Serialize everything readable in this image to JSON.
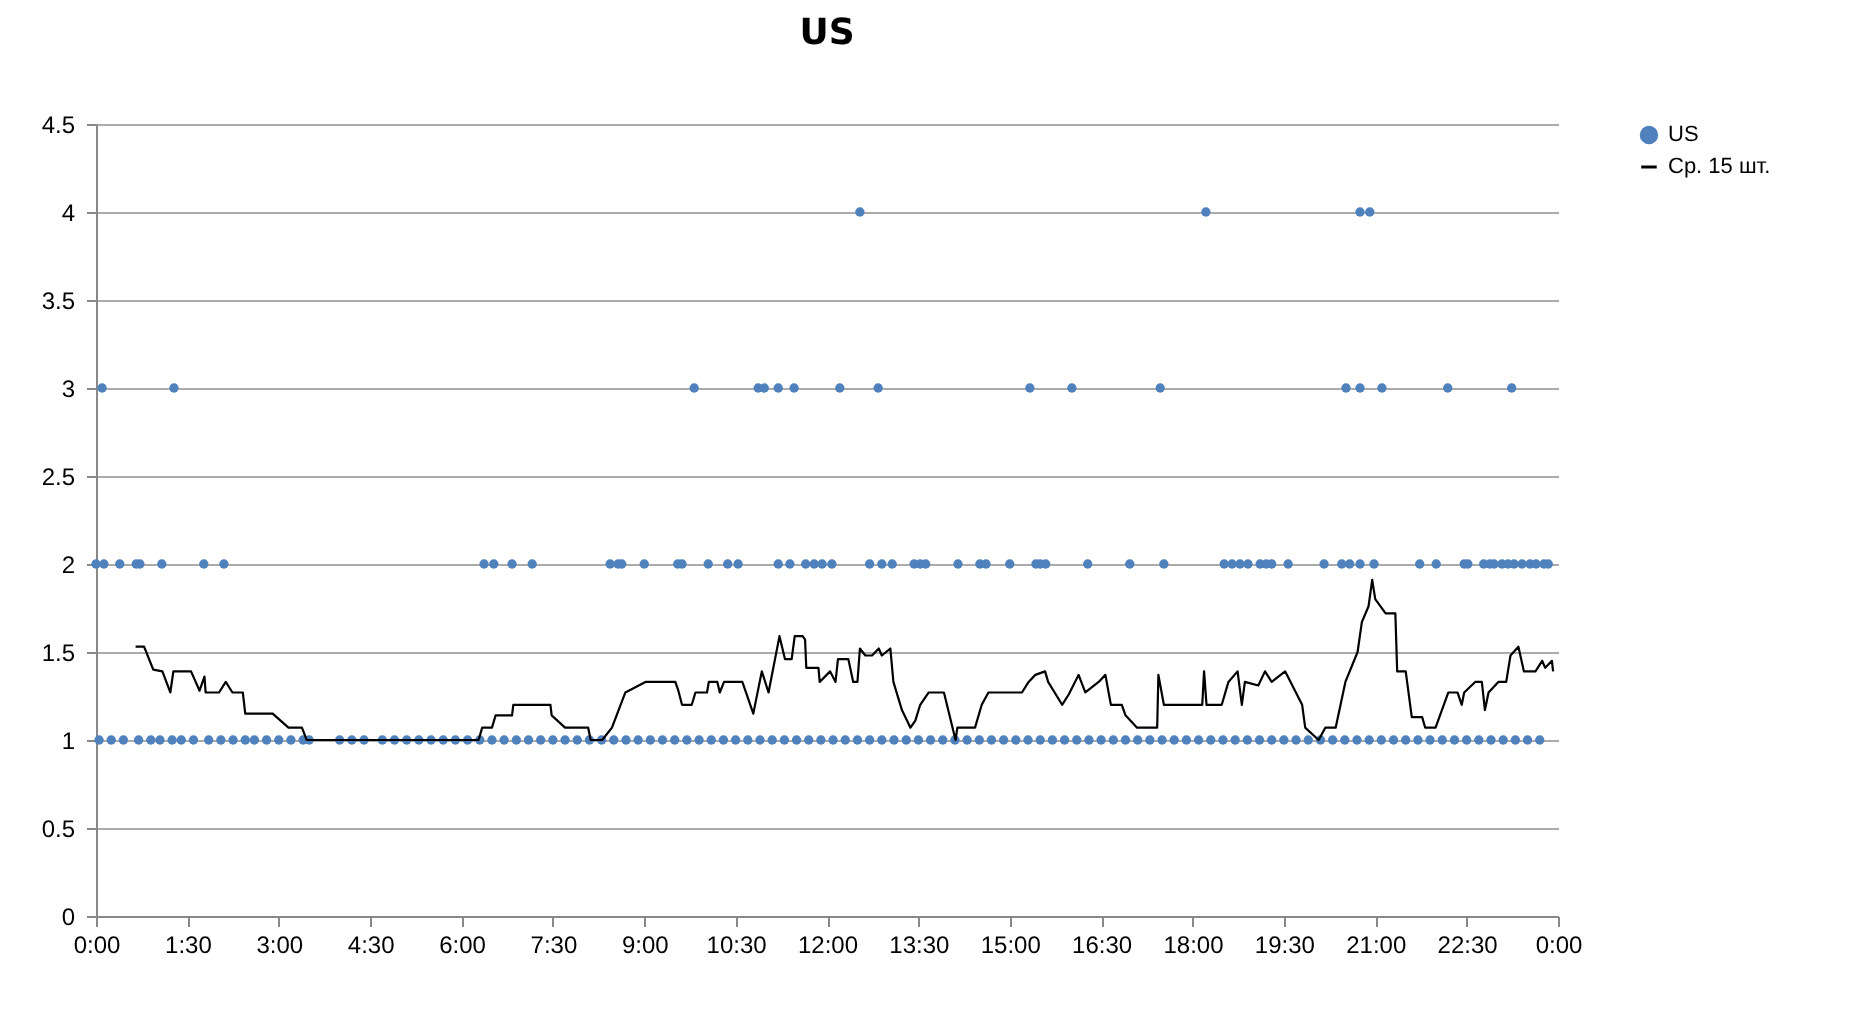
{
  "chart_data": {
    "type": "scatter",
    "title": "US",
    "grid": "y",
    "legend": "right",
    "xlim": [
      0,
      24
    ],
    "xticks": [
      {
        "value": 0,
        "label": "0:00"
      },
      {
        "value": 1.5,
        "label": "1:30"
      },
      {
        "value": 3,
        "label": "3:00"
      },
      {
        "value": 4.5,
        "label": "4:30"
      },
      {
        "value": 6,
        "label": "6:00"
      },
      {
        "value": 7.5,
        "label": "7:30"
      },
      {
        "value": 9,
        "label": "9:00"
      },
      {
        "value": 10.5,
        "label": "10:30"
      },
      {
        "value": 12,
        "label": "12:00"
      },
      {
        "value": 13.5,
        "label": "13:30"
      },
      {
        "value": 15,
        "label": "15:00"
      },
      {
        "value": 16.5,
        "label": "16:30"
      },
      {
        "value": 18,
        "label": "18:00"
      },
      {
        "value": 19.5,
        "label": "19:30"
      },
      {
        "value": 21,
        "label": "21:00"
      },
      {
        "value": 22.5,
        "label": "22:30"
      },
      {
        "value": 24,
        "label": "0:00"
      }
    ],
    "ylim": [
      0,
      4.5
    ],
    "yticks": [
      0,
      0.5,
      1,
      1.5,
      2,
      2.5,
      3,
      3.5,
      4,
      4.5
    ],
    "series": [
      {
        "name": "US",
        "type": "scatter",
        "color": "#4f81bd",
        "marker": "circle",
        "x": [
          0.1,
          1.28,
          9.82,
          10.87,
          10.97,
          11.2,
          11.46,
          12.21,
          12.84,
          15.33,
          16.02,
          17.47,
          20.52,
          20.75,
          21.11,
          22.19,
          23.24,
          12.54,
          18.22,
          20.75,
          20.91,
          0.0,
          0.13,
          0.39,
          0.66,
          0.72,
          1.08,
          1.77,
          2.1,
          6.37,
          6.53,
          6.83,
          7.16,
          8.44,
          8.57,
          8.63,
          9.0,
          9.55,
          9.62,
          10.05,
          10.37,
          10.54,
          11.2,
          11.39,
          11.65,
          11.79,
          11.92,
          12.08,
          12.7,
          12.9,
          13.07,
          13.43,
          13.53,
          13.62,
          14.15,
          14.51,
          14.61,
          15.0,
          15.43,
          15.5,
          15.59,
          16.28,
          16.97,
          17.53,
          18.52,
          18.65,
          18.78,
          18.91,
          19.11,
          19.21,
          19.3,
          19.57,
          20.16,
          20.45,
          20.58,
          20.75,
          20.98,
          21.73,
          22.0,
          22.46,
          22.52,
          22.78,
          22.88,
          22.95,
          23.08,
          23.18,
          23.28,
          23.41,
          23.54,
          23.64,
          23.77,
          23.84,
          0.05,
          0.25,
          0.45,
          0.7,
          0.9,
          1.05,
          1.25,
          1.4,
          1.6,
          1.85,
          2.05,
          2.25,
          2.45,
          2.6,
          2.8,
          3.0,
          3.2,
          3.4,
          3.5,
          4.0,
          4.2,
          4.4,
          4.7,
          4.9,
          5.1,
          5.3,
          5.5,
          5.7,
          5.9,
          6.1,
          6.3,
          6.5,
          6.7,
          6.9,
          7.1,
          7.3,
          7.5,
          7.7,
          7.9,
          8.1,
          8.3,
          8.5,
          8.7,
          8.9,
          9.1,
          9.3,
          9.5,
          9.7,
          9.9,
          10.1,
          10.3,
          10.5,
          10.7,
          10.9,
          11.1,
          11.3,
          11.5,
          11.7,
          11.9,
          12.1,
          12.3,
          12.5,
          12.7,
          12.9,
          13.1,
          13.3,
          13.5,
          13.7,
          13.9,
          14.1,
          14.3,
          14.5,
          14.7,
          14.9,
          15.1,
          15.3,
          15.5,
          15.7,
          15.9,
          16.1,
          16.3,
          16.5,
          16.7,
          16.9,
          17.1,
          17.3,
          17.5,
          17.7,
          17.9,
          18.1,
          18.3,
          18.5,
          18.7,
          18.9,
          19.1,
          19.3,
          19.5,
          19.7,
          19.9,
          20.1,
          20.3,
          20.5,
          20.7,
          20.9,
          21.1,
          21.3,
          21.5,
          21.7,
          21.9,
          22.1,
          22.3,
          22.5,
          22.7,
          22.9,
          23.1,
          23.3,
          23.5,
          23.7
        ],
        "values": [
          3,
          3,
          3,
          3,
          3,
          3,
          3,
          3,
          3,
          3,
          3,
          3,
          3,
          3,
          3,
          3,
          3,
          4,
          4,
          4,
          4,
          2,
          2,
          2,
          2,
          2,
          2,
          2,
          2,
          2,
          2,
          2,
          2,
          2,
          2,
          2,
          2,
          2,
          2,
          2,
          2,
          2,
          2,
          2,
          2,
          2,
          2,
          2,
          2,
          2,
          2,
          2,
          2,
          2,
          2,
          2,
          2,
          2,
          2,
          2,
          2,
          2,
          2,
          2,
          2,
          2,
          2,
          2,
          2,
          2,
          2,
          2,
          2,
          2,
          2,
          2,
          2,
          2,
          2,
          2,
          2,
          2,
          2,
          2,
          2,
          2,
          2,
          2,
          2,
          2,
          2,
          2,
          1,
          1,
          1,
          1,
          1,
          1,
          1,
          1,
          1,
          1,
          1,
          1,
          1,
          1,
          1,
          1,
          1,
          1,
          1,
          1,
          1,
          1,
          1,
          1,
          1,
          1,
          1,
          1,
          1,
          1,
          1,
          1,
          1,
          1,
          1,
          1,
          1,
          1,
          1,
          1,
          1,
          1,
          1,
          1,
          1,
          1,
          1,
          1,
          1,
          1,
          1,
          1,
          1,
          1,
          1,
          1,
          1,
          1,
          1,
          1,
          1,
          1,
          1,
          1,
          1,
          1,
          1,
          1,
          1,
          1,
          1,
          1,
          1,
          1,
          1,
          1,
          1,
          1,
          1,
          1,
          1,
          1,
          1,
          1,
          1,
          1,
          1,
          1,
          1,
          1,
          1,
          1,
          1,
          1,
          1,
          1,
          1,
          1,
          1,
          1,
          1,
          1,
          1,
          1,
          1,
          1,
          1,
          1,
          1,
          1,
          1,
          1,
          1,
          1,
          1,
          1,
          1,
          1
        ]
      },
      {
        "name": "Ср. 15 шт.",
        "type": "line",
        "color": "#000000",
        "line_style": "solid",
        "marker": "none",
        "x": [
          0.65,
          0.79,
          0.94,
          1.09,
          1.22,
          1.27,
          1.36,
          1.56,
          1.7,
          1.78,
          1.8,
          2.02,
          2.13,
          2.24,
          2.41,
          2.45,
          2.9,
          3.16,
          3.38,
          3.46,
          6.28,
          6.34,
          6.5,
          6.56,
          6.83,
          6.85,
          7.46,
          7.48,
          7.7,
          8.08,
          8.12,
          8.31,
          8.47,
          8.69,
          9.02,
          9.51,
          9.56,
          9.62,
          9.78,
          9.84,
          10.03,
          10.06,
          10.2,
          10.24,
          10.31,
          10.61,
          10.66,
          10.79,
          10.93,
          11.04,
          11.22,
          11.31,
          11.42,
          11.47,
          11.6,
          11.64,
          11.66,
          11.86,
          11.88,
          12.05,
          12.14,
          12.18,
          12.35,
          12.43,
          12.5,
          12.54,
          12.63,
          12.74,
          12.85,
          12.9,
          13.04,
          13.09,
          13.23,
          13.37,
          13.45,
          13.53,
          13.67,
          13.92,
          13.99,
          14.11,
          14.14,
          14.43,
          14.54,
          14.65,
          15.2,
          15.31,
          15.42,
          15.58,
          15.63,
          15.86,
          15.97,
          16.13,
          16.24,
          16.46,
          16.57,
          16.66,
          16.84,
          16.9,
          17.09,
          17.42,
          17.44,
          17.53,
          18.16,
          18.19,
          18.23,
          18.48,
          18.59,
          18.74,
          18.81,
          18.86,
          19.08,
          19.19,
          19.3,
          19.52,
          19.8,
          19.85,
          20.07,
          20.18,
          20.35,
          20.51,
          20.71,
          20.78,
          20.89,
          20.95,
          21.0,
          21.17,
          21.33,
          21.36,
          21.5,
          21.6,
          21.77,
          21.82,
          21.99,
          22.2,
          22.35,
          22.42,
          22.46,
          22.64,
          22.75,
          22.8,
          22.86,
          23.02,
          23.15,
          23.22,
          23.35,
          23.44,
          23.63,
          23.74,
          23.79,
          23.9,
          23.92
        ],
        "values": [
          1.53,
          1.53,
          1.4,
          1.39,
          1.27,
          1.39,
          1.39,
          1.39,
          1.28,
          1.36,
          1.27,
          1.27,
          1.33,
          1.27,
          1.27,
          1.15,
          1.15,
          1.07,
          1.07,
          1.0,
          1.0,
          1.07,
          1.07,
          1.14,
          1.14,
          1.2,
          1.2,
          1.14,
          1.07,
          1.07,
          1.0,
          1.0,
          1.07,
          1.27,
          1.33,
          1.33,
          1.28,
          1.2,
          1.2,
          1.27,
          1.27,
          1.33,
          1.33,
          1.27,
          1.33,
          1.33,
          1.28,
          1.15,
          1.39,
          1.27,
          1.59,
          1.46,
          1.46,
          1.59,
          1.59,
          1.57,
          1.41,
          1.41,
          1.33,
          1.39,
          1.33,
          1.46,
          1.46,
          1.33,
          1.33,
          1.52,
          1.48,
          1.48,
          1.52,
          1.48,
          1.52,
          1.33,
          1.17,
          1.07,
          1.11,
          1.2,
          1.27,
          1.27,
          1.17,
          1.0,
          1.07,
          1.07,
          1.2,
          1.27,
          1.27,
          1.33,
          1.37,
          1.39,
          1.33,
          1.2,
          1.26,
          1.37,
          1.27,
          1.33,
          1.37,
          1.2,
          1.2,
          1.14,
          1.07,
          1.07,
          1.37,
          1.2,
          1.2,
          1.39,
          1.2,
          1.2,
          1.33,
          1.39,
          1.2,
          1.33,
          1.31,
          1.39,
          1.33,
          1.39,
          1.2,
          1.07,
          1.0,
          1.07,
          1.07,
          1.33,
          1.5,
          1.67,
          1.76,
          1.91,
          1.8,
          1.72,
          1.72,
          1.39,
          1.39,
          1.13,
          1.13,
          1.07,
          1.07,
          1.27,
          1.27,
          1.2,
          1.27,
          1.33,
          1.33,
          1.17,
          1.27,
          1.33,
          1.33,
          1.48,
          1.53,
          1.39,
          1.39,
          1.45,
          1.41,
          1.45,
          1.39
        ]
      }
    ]
  }
}
